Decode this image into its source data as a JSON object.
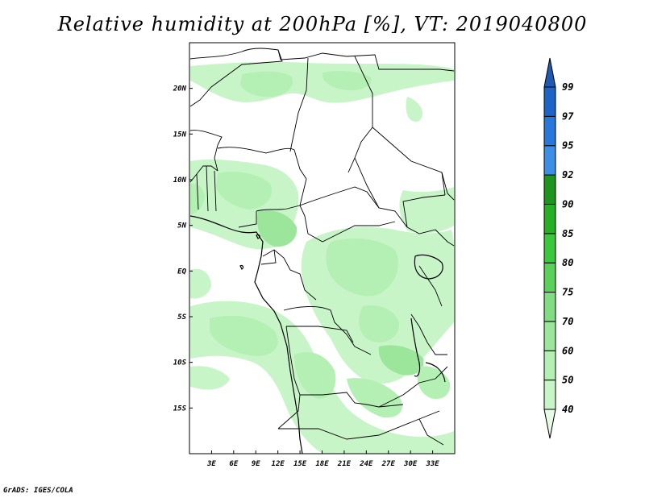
{
  "title": "Relative humidity at 200hPa [%], VT: 2019040800",
  "credit": "GrADS: IGES/COLA",
  "map": {
    "lon_range": [
      0,
      36
    ],
    "lat_range": [
      -20,
      25
    ],
    "x_ticks": [
      {
        "value": 3,
        "label": "3E"
      },
      {
        "value": 6,
        "label": "6E"
      },
      {
        "value": 9,
        "label": "9E"
      },
      {
        "value": 12,
        "label": "12E"
      },
      {
        "value": 15,
        "label": "15E"
      },
      {
        "value": 18,
        "label": "18E"
      },
      {
        "value": 21,
        "label": "21E"
      },
      {
        "value": 24,
        "label": "24E"
      },
      {
        "value": 27,
        "label": "27E"
      },
      {
        "value": 30,
        "label": "30E"
      },
      {
        "value": 33,
        "label": "33E"
      }
    ],
    "y_ticks": [
      {
        "value": 20,
        "label": "20N"
      },
      {
        "value": 15,
        "label": "15N"
      },
      {
        "value": 10,
        "label": "10N"
      },
      {
        "value": 5,
        "label": "5N"
      },
      {
        "value": 0,
        "label": "EQ"
      },
      {
        "value": -5,
        "label": "5S"
      },
      {
        "value": -10,
        "label": "10S"
      },
      {
        "value": -15,
        "label": "15S"
      }
    ]
  },
  "colorbar": {
    "levels": [
      "40",
      "50",
      "60",
      "70",
      "75",
      "80",
      "85",
      "90",
      "92",
      "95",
      "97",
      "99"
    ],
    "colors": [
      "#e6fae6",
      "#c8f5c8",
      "#b4f0b4",
      "#9ce69c",
      "#82dc82",
      "#5ad25a",
      "#3cc83c",
      "#28af28",
      "#1e961e",
      "#3c8ee6",
      "#2878dc",
      "#1e64c8",
      "#1e5ab4"
    ]
  },
  "colors": {
    "frame": "#000000",
    "land_boundary": "#000000"
  }
}
